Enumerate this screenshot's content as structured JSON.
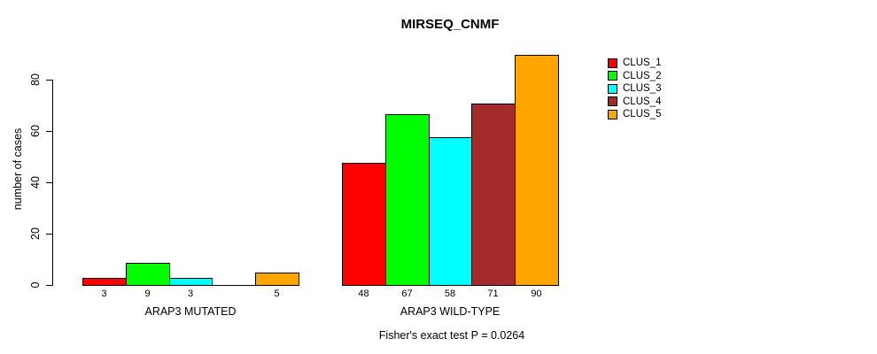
{
  "chart_data": {
    "type": "bar",
    "title": "MIRSEQ_CNMF",
    "ylabel": "number of cases",
    "xlabel": "",
    "yticks": [
      0,
      20,
      40,
      60,
      80
    ],
    "ylim": [
      0,
      90
    ],
    "grid": false,
    "legend_position": "right",
    "categories": [
      "CLUS_1",
      "CLUS_2",
      "CLUS_3",
      "CLUS_4",
      "CLUS_5"
    ],
    "colors": [
      "#FF0000",
      "#00FF00",
      "#00FFFF",
      "#A52A2A",
      "#FFA500"
    ],
    "groups": [
      {
        "label": "ARAP3 MUTATED",
        "values": [
          3,
          9,
          3,
          0,
          5
        ],
        "bar_labels": [
          "3",
          "9",
          "3",
          "",
          "5"
        ]
      },
      {
        "label": "ARAP3 WILD-TYPE",
        "values": [
          48,
          67,
          58,
          71,
          90
        ],
        "bar_labels": [
          "48",
          "67",
          "58",
          "71",
          "90"
        ]
      }
    ],
    "caption": "Fisher's exact test P = 0.0264"
  }
}
